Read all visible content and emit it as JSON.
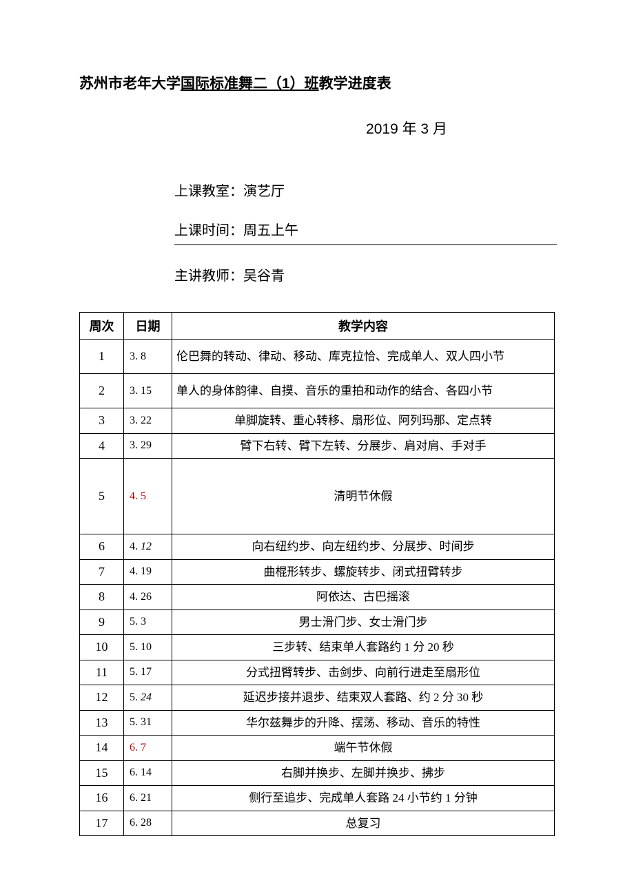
{
  "title_prefix": "苏州市老年大学",
  "title_underlined": "国际标准舞二（1）班",
  "title_suffix": "教学进度表",
  "date_line": "2019 年 3 月",
  "info": {
    "room_label": "上课教室：",
    "room_value": "演艺厅",
    "time_label": "上课时间：",
    "time_value": "周五上午",
    "teacher_label": "主讲教师：",
    "teacher_value": "吴谷青"
  },
  "headers": {
    "week": "周次",
    "date": "日期",
    "content": "教学内容"
  },
  "rows": [
    {
      "week": "1",
      "date": "3. 8",
      "content": "伦巴舞的转动、律动、移动、库克拉恰、完成单人、双人四小节",
      "align": "left",
      "height": "med"
    },
    {
      "week": "2",
      "date": "3. 15",
      "content": "单人的身体韵律、自摸、音乐的重拍和动作的结合、各四小节",
      "align": "left",
      "height": "med"
    },
    {
      "week": "3",
      "date": "3. 22",
      "content": "单脚旋转、重心转移、扇形位、阿列玛那、定点转"
    },
    {
      "week": "4",
      "date": "3. 29",
      "content": "臂下右转、臂下左转、分展步、肩对肩、手对手"
    },
    {
      "week": "5",
      "date": "4. 5",
      "content": "清明节休假",
      "date_red": true,
      "height": "tall"
    },
    {
      "week": "6",
      "date_prefix": "4. ",
      "date_italic": "12",
      "content": "向右纽约步、向左纽约步、分展步、时间步"
    },
    {
      "week": "7",
      "date": "4. 19",
      "content": "曲棍形转步、螺旋转步、闭式扭臂转步"
    },
    {
      "week": "8",
      "date": "4. 26",
      "content": "阿依达、古巴摇滚"
    },
    {
      "week": "9",
      "date": "5. 3",
      "content": "男士滑门步、女士滑门步"
    },
    {
      "week": "10",
      "date": "5. 10",
      "content": "三步转、结束单人套路约 1 分 20 秒"
    },
    {
      "week": "11",
      "date": "5. 17",
      "content": "分式扭臂转步、击剑步、向前行进走至扇形位"
    },
    {
      "week": "12",
      "date_prefix": "5. ",
      "date_italic": "24",
      "content": "延迟步接并退步、结束双人套路、约 2 分 30 秒"
    },
    {
      "week": "13",
      "date": "5. 31",
      "content": "华尔兹舞步的升降、摆荡、移动、音乐的特性"
    },
    {
      "week": "14",
      "date": "6. 7",
      "content": "端午节休假",
      "date_red": true
    },
    {
      "week": "15",
      "date": "6. 14",
      "content": "右脚并换步、左脚并换步、拂步"
    },
    {
      "week": "16",
      "date": "6. 21",
      "content": "侧行至追步、完成单人套路 24 小节约 1 分钟"
    },
    {
      "week": "17",
      "date": "6. 28",
      "content": "总复习"
    }
  ]
}
